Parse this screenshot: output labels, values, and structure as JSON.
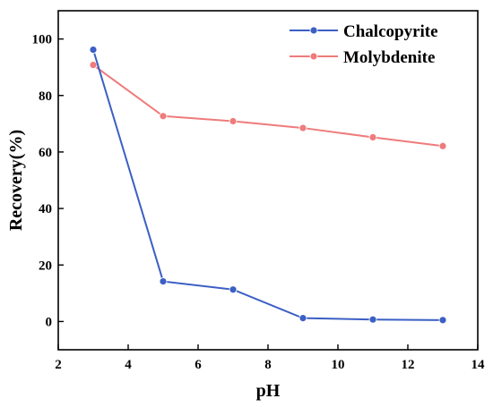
{
  "chart_data": {
    "type": "line",
    "xlabel": "pH",
    "ylabel": "Recovery(%)",
    "xlim": [
      2,
      14
    ],
    "ylim": [
      -10,
      110
    ],
    "xticks": [
      2,
      4,
      6,
      8,
      10,
      12,
      14
    ],
    "yticks": [
      0,
      20,
      40,
      60,
      80,
      100
    ],
    "grid": false,
    "legend_position": "top-right",
    "x": [
      3,
      5,
      7,
      9,
      11,
      13
    ],
    "series": [
      {
        "name": "Chalcopyrite",
        "color": "#3b5fc4",
        "marker": "circle",
        "values": [
          96.2,
          14.2,
          11.3,
          1.2,
          0.7,
          0.5
        ]
      },
      {
        "name": "Molybdenite",
        "color": "#ef7b7b",
        "marker": "circle",
        "values": [
          90.8,
          72.7,
          70.9,
          68.5,
          65.2,
          62.1
        ]
      }
    ]
  }
}
